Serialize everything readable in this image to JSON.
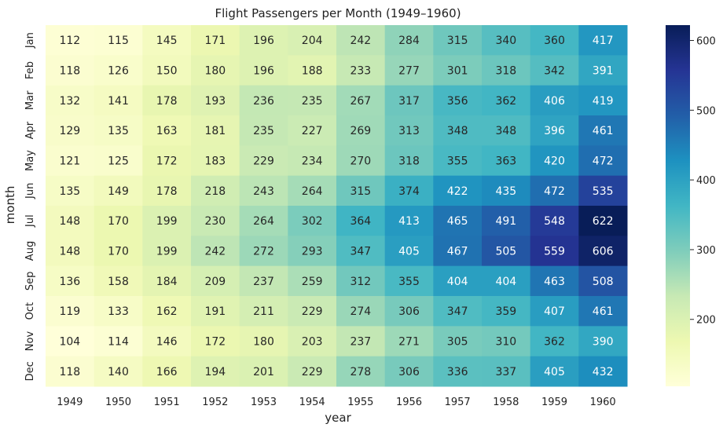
{
  "chart_data": {
    "type": "heatmap",
    "title": "Flight Passengers per Month (1949–1960)",
    "xlabel": "year",
    "ylabel": "month",
    "x": [
      "1949",
      "1950",
      "1951",
      "1952",
      "1953",
      "1954",
      "1955",
      "1956",
      "1957",
      "1958",
      "1959",
      "1960"
    ],
    "y": [
      "Jan",
      "Feb",
      "Mar",
      "Apr",
      "May",
      "Jun",
      "Jul",
      "Aug",
      "Sep",
      "Oct",
      "Nov",
      "Dec"
    ],
    "values": [
      [
        112,
        115,
        145,
        171,
        196,
        204,
        242,
        284,
        315,
        340,
        360,
        417
      ],
      [
        118,
        126,
        150,
        180,
        196,
        188,
        233,
        277,
        301,
        318,
        342,
        391
      ],
      [
        132,
        141,
        178,
        193,
        236,
        235,
        267,
        317,
        356,
        362,
        406,
        419
      ],
      [
        129,
        135,
        163,
        181,
        235,
        227,
        269,
        313,
        348,
        348,
        396,
        461
      ],
      [
        121,
        125,
        172,
        183,
        229,
        234,
        270,
        318,
        355,
        363,
        420,
        472
      ],
      [
        135,
        149,
        178,
        218,
        243,
        264,
        315,
        374,
        422,
        435,
        472,
        535
      ],
      [
        148,
        170,
        199,
        230,
        264,
        302,
        364,
        413,
        465,
        491,
        548,
        622
      ],
      [
        148,
        170,
        199,
        242,
        272,
        293,
        347,
        405,
        467,
        505,
        559,
        606
      ],
      [
        136,
        158,
        184,
        209,
        237,
        259,
        312,
        355,
        404,
        404,
        463,
        508
      ],
      [
        119,
        133,
        162,
        191,
        211,
        229,
        274,
        306,
        347,
        359,
        407,
        461
      ],
      [
        104,
        114,
        146,
        172,
        180,
        203,
        237,
        271,
        305,
        310,
        362,
        390
      ],
      [
        118,
        140,
        166,
        194,
        201,
        229,
        278,
        306,
        336,
        337,
        405,
        432
      ]
    ],
    "colormap": "YlGnBu",
    "vmin": 104,
    "vmax": 622,
    "colorbar_ticks": [
      "200",
      "300",
      "400",
      "500",
      "600"
    ],
    "annotated": true,
    "grid": false
  }
}
